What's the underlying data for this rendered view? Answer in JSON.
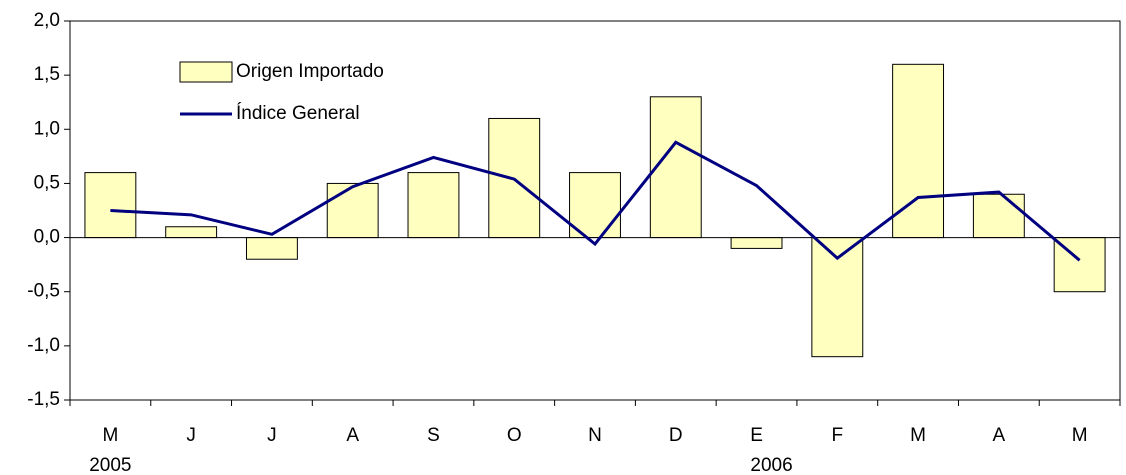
{
  "chart_data": {
    "type": "bar_line",
    "categories": [
      "M",
      "J",
      "J",
      "A",
      "S",
      "O",
      "N",
      "D",
      "E",
      "F",
      "M",
      "A",
      "M"
    ],
    "x_groups": [
      {
        "label": "2005",
        "start": 0
      },
      {
        "label": "2006",
        "start": 8
      }
    ],
    "series": [
      {
        "name": "Origen Importado",
        "type": "bar",
        "color": "#ffffc0",
        "values": [
          0.6,
          0.1,
          -0.2,
          0.5,
          0.6,
          1.1,
          0.6,
          1.3,
          -0.1,
          -1.1,
          1.6,
          0.4,
          -0.5
        ]
      },
      {
        "name": "Índice General",
        "type": "line",
        "color": "#000080",
        "values": [
          0.25,
          0.21,
          0.03,
          0.47,
          0.74,
          0.54,
          -0.06,
          0.88,
          0.48,
          -0.19,
          0.37,
          0.42,
          -0.21
        ]
      }
    ],
    "ylim": [
      -1.5,
      2
    ],
    "yticks": [
      {
        "value": -1.5,
        "label": "-1,5"
      },
      {
        "value": -1,
        "label": "-1,0"
      },
      {
        "value": -0.5,
        "label": "-0,5"
      },
      {
        "value": 0,
        "label": "0,0"
      },
      {
        "value": 0.5,
        "label": "0,5"
      },
      {
        "value": 1,
        "label": "1,0"
      },
      {
        "value": 1.5,
        "label": "1,5"
      },
      {
        "value": 2,
        "label": "2,0"
      }
    ],
    "grid": false,
    "legend": "upper left"
  }
}
